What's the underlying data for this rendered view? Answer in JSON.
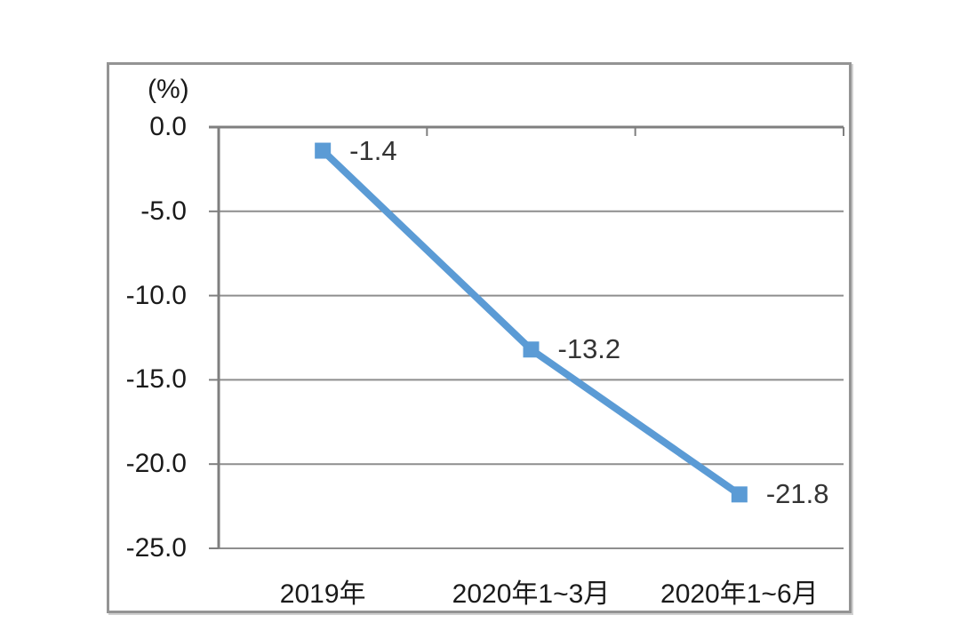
{
  "chart_data": {
    "type": "line",
    "categories": [
      "2019年",
      "2020年1~3月",
      "2020年1~6月"
    ],
    "values": [
      -1.4,
      -13.2,
      -21.8
    ],
    "data_labels": [
      "-1.4",
      "-13.2",
      "-21.8"
    ],
    "title": "",
    "xlabel": "",
    "ylabel": "(%)",
    "ylim": [
      -25,
      0
    ],
    "yticks": [
      0,
      -5,
      -10,
      -15,
      -20,
      -25
    ],
    "ytick_labels": [
      "0.0",
      "-5.0",
      "-10.0",
      "-15.0",
      "-20.0",
      "-25.0"
    ],
    "grid": true,
    "legend": false,
    "marker": "square",
    "colors": {
      "line": "#5b9bd5",
      "marker": "#5b9bd5",
      "gridline": "#8e8e8e",
      "axis": "#7f7f7f",
      "tick_text": "#1a1a1a",
      "data_label_text": "#333333",
      "frame_border": "#949494",
      "background": "#ffffff"
    }
  }
}
